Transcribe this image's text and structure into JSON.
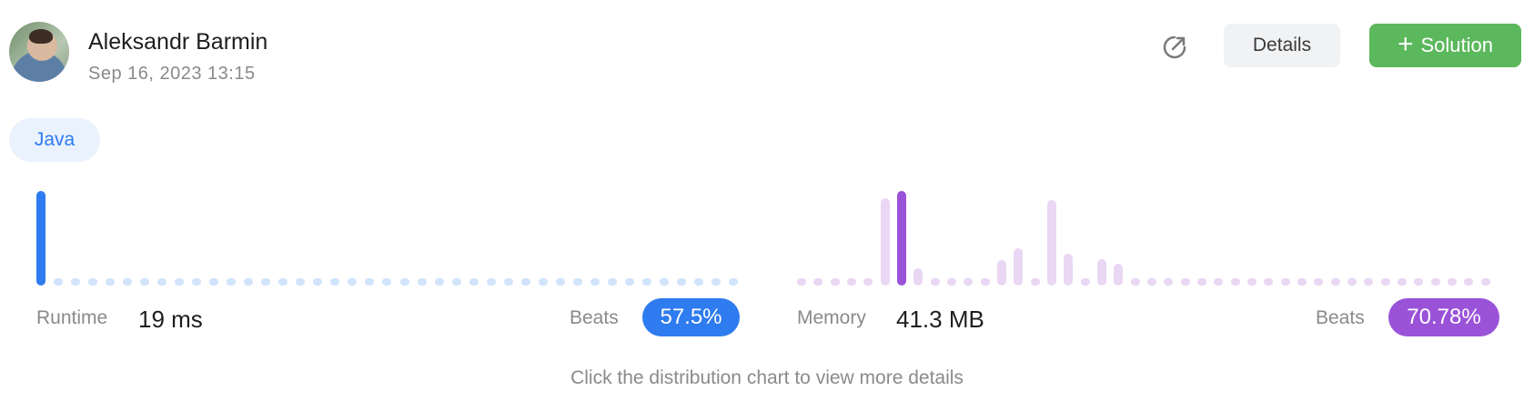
{
  "user": {
    "name": "Aleksandr Barmin",
    "date": "Sep 16, 2023 13:15"
  },
  "toolbar": {
    "details_label": "Details",
    "solution_label": "Solution",
    "plus": "+"
  },
  "language": "Java",
  "runtime": {
    "label": "Runtime",
    "value": "19 ms",
    "beats_label": "Beats",
    "beats": "57.5%"
  },
  "memory": {
    "label": "Memory",
    "value": "41.3 MB",
    "beats_label": "Beats",
    "beats": "70.78%"
  },
  "hint": "Click the distribution chart to view more details",
  "colors": {
    "runtime_active": "#2f7bf0",
    "runtime_inactive": "#d2e4fb",
    "memory_active": "#9a52d8",
    "memory_inactive": "#ead7f4",
    "green": "#5cb85c"
  },
  "chart_data": [
    {
      "type": "bar",
      "series": [
        {
          "values": [
            100,
            3,
            3,
            3,
            3,
            3,
            3,
            3,
            3,
            3,
            3,
            3,
            3,
            3,
            3,
            3,
            3,
            3,
            3,
            3,
            3,
            3,
            3,
            3,
            3,
            3,
            3,
            3,
            3,
            3,
            3,
            3,
            3,
            3,
            3,
            3,
            3,
            3,
            3,
            3,
            3
          ]
        }
      ],
      "highlight_index": 0
    },
    {
      "type": "bar",
      "series": [
        {
          "values": [
            3,
            3,
            3,
            3,
            3,
            90,
            97,
            18,
            3,
            3,
            3,
            3,
            26,
            38,
            3,
            88,
            33,
            3,
            27,
            22,
            3,
            3,
            3,
            3,
            3,
            3,
            3,
            3,
            3,
            3,
            3,
            3,
            3,
            3,
            3,
            3,
            3,
            3,
            3,
            3,
            3,
            3
          ]
        }
      ],
      "highlight_index": 6
    }
  ]
}
